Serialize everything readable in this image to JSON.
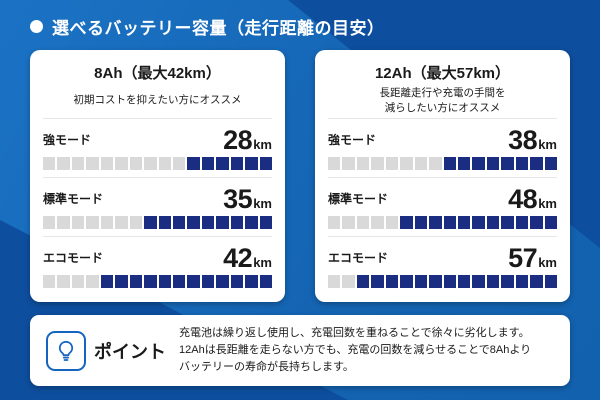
{
  "header": {
    "title": "選べるバッテリー容量（走行距離の目安）"
  },
  "cards": [
    {
      "title": "8Ah（最大42km）",
      "subtitle": "初期コストを抑えたい方にオススメ",
      "rows": [
        {
          "label": "強モード",
          "value": "28",
          "unit": "km",
          "segments_total": 16,
          "segments_filled": 6
        },
        {
          "label": "標準モード",
          "value": "35",
          "unit": "km",
          "segments_total": 16,
          "segments_filled": 9
        },
        {
          "label": "エコモード",
          "value": "42",
          "unit": "km",
          "segments_total": 16,
          "segments_filled": 12
        }
      ]
    },
    {
      "title": "12Ah（最大57km）",
      "subtitle": "長距離走行や充電の手間を\n減らしたい方にオススメ",
      "rows": [
        {
          "label": "強モード",
          "value": "38",
          "unit": "km",
          "segments_total": 16,
          "segments_filled": 8
        },
        {
          "label": "標準モード",
          "value": "48",
          "unit": "km",
          "segments_total": 16,
          "segments_filled": 11
        },
        {
          "label": "エコモード",
          "value": "57",
          "unit": "km",
          "segments_total": 16,
          "segments_filled": 14
        }
      ]
    }
  ],
  "point": {
    "icon": "lightbulb-icon",
    "label": "ポイント",
    "text": "充電池は繰り返し使用し、充電回数を重ねることで徐々に劣化します。\n12Ahは長距離を走らない方でも、充電の回数を減らせることで8Ahより\nバッテリーの寿命が長持ちします。"
  },
  "colors": {
    "bar_filled": "#1b2d80",
    "bar_empty": "#d9d9d9",
    "accent_blue": "#1565c0",
    "bg_base": "#1566b4",
    "bg_dark": "#0e4e9e",
    "header_text": "#ffffff"
  },
  "chart_data": {
    "type": "bar",
    "title": "選べるバッテリー容量（走行距離の目安）",
    "categories": [
      "強モード",
      "標準モード",
      "エコモード"
    ],
    "series": [
      {
        "name": "8Ah（最大42km）",
        "values": [
          28,
          35,
          42
        ]
      },
      {
        "name": "12Ah（最大57km）",
        "values": [
          38,
          48,
          57
        ]
      }
    ],
    "unit": "km",
    "xlabel": "",
    "ylabel": "走行距離",
    "ylim": [
      0,
      57
    ],
    "legend_position": "card-titles",
    "grid": false,
    "note": "充電池は繰り返し使用し、充電回数を重ねることで徐々に劣化します。12Ahは長距離を走らない方でも、充電の回数を減らせることで8Ahよりバッテリーの寿命が長持ちします。"
  }
}
